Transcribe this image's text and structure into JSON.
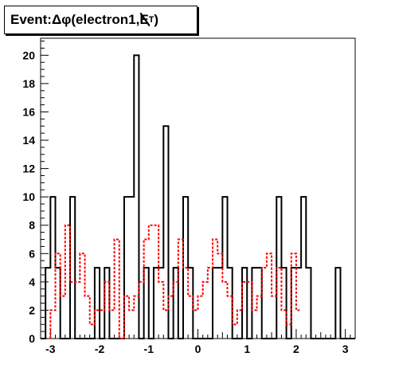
{
  "title": {
    "prefix": "Event: ",
    "delta": "Δφ",
    "open": "(electron1,",
    "met": "E",
    "sub": "T",
    "close": ")"
  },
  "chart_data": {
    "type": "histogram",
    "x_range": [
      -3.2,
      3.2
    ],
    "ylim": [
      0,
      21.2
    ],
    "bin_width": 0.1,
    "x_ticks": [
      -3,
      -2,
      -1,
      0,
      1,
      2,
      3
    ],
    "y_ticks": [
      0,
      2,
      4,
      6,
      8,
      10,
      12,
      14,
      16,
      18,
      20
    ],
    "grid": false,
    "series": [
      {
        "color": "#000000",
        "style": "solid",
        "values": [
          0,
          5,
          10,
          5,
          0,
          0,
          10,
          0,
          0,
          0,
          0,
          5,
          0,
          5,
          0,
          0,
          0,
          10,
          10,
          20,
          0,
          5,
          0,
          5,
          5,
          15,
          0,
          5,
          0,
          10,
          5,
          0,
          0,
          0,
          0,
          5,
          5,
          10,
          5,
          0,
          0,
          5,
          0,
          5,
          5,
          0,
          0,
          0,
          10,
          5,
          0,
          5,
          5,
          10,
          5,
          0,
          0,
          0,
          0,
          0,
          5,
          0,
          0,
          0
        ]
      },
      {
        "color": "#ff0000",
        "style": "dashed",
        "values": [
          2,
          6,
          3,
          8,
          4,
          4,
          6,
          3,
          1,
          2,
          2,
          4,
          2,
          7,
          0,
          3,
          2,
          3,
          4,
          7,
          8,
          8,
          4,
          2,
          3,
          4,
          7,
          5,
          3,
          2,
          3,
          4,
          5,
          7,
          6,
          4,
          3,
          1,
          2,
          4,
          4,
          2,
          3,
          5,
          6,
          3,
          5,
          2,
          1,
          6,
          2
        ]
      }
    ],
    "series_x_start": [
      -3.2,
      -3.0
    ]
  }
}
